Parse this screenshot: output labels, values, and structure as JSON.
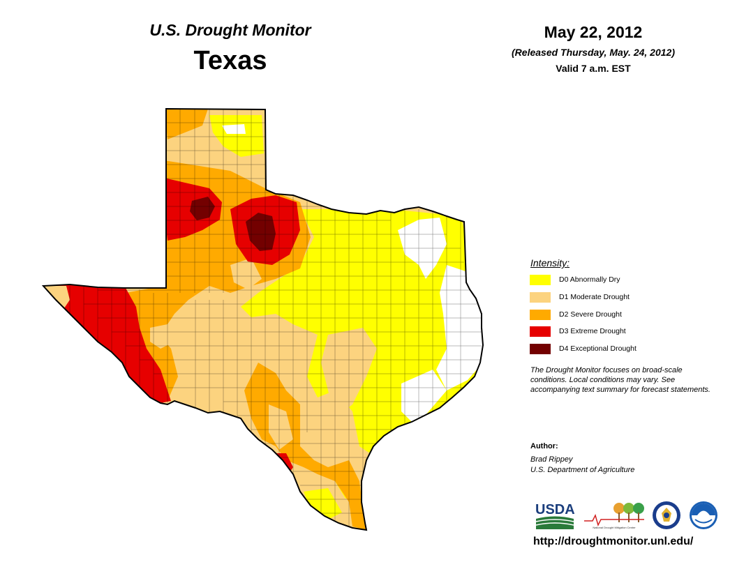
{
  "header": {
    "title": "U.S. Drought Monitor",
    "region": "Texas",
    "date": "May 22, 2012",
    "released": "(Released Thursday, May. 24, 2012)",
    "valid": "Valid 7 a.m. EST"
  },
  "legend": {
    "title": "Intensity:",
    "items": [
      {
        "label": "D0 Abnormally Dry",
        "color": "#ffff00"
      },
      {
        "label": "D1 Moderate Drought",
        "color": "#fcd37f"
      },
      {
        "label": "D2 Severe Drought",
        "color": "#ffaa00"
      },
      {
        "label": "D3 Extreme Drought",
        "color": "#e60000"
      },
      {
        "label": "D4 Exceptional Drought",
        "color": "#730000"
      }
    ]
  },
  "note": "The Drought Monitor focuses on broad-scale conditions. Local conditions may vary. See accompanying text summary for forecast statements.",
  "author": {
    "heading": "Author:",
    "name": "Brad Rippey",
    "org": "U.S. Department of Agriculture"
  },
  "logos": {
    "usda": "USDA",
    "ndmc": "National Drought Mitigation Center"
  },
  "url": "http://droughtmonitor.unl.edu/"
}
